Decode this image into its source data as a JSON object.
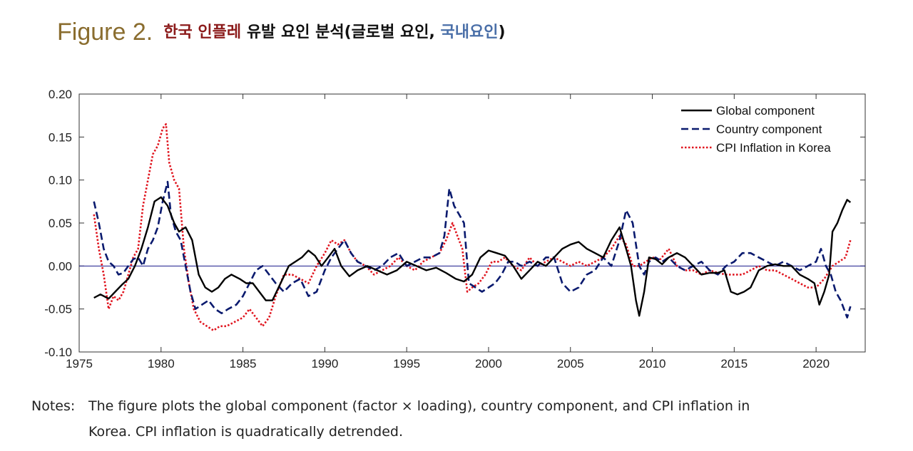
{
  "figure": {
    "label": "Figure  2.",
    "title_part1": "한국 인플레",
    "title_part2": " 유발 요인 분석(글로벌 요인, ",
    "title_part3": "국내요인",
    "title_part4": ")"
  },
  "notes": {
    "label": "Notes:",
    "line1": "The figure plots the global component (factor × loading), country component, and CPI inflation in",
    "line2": "Korea. CPI inflation is quadratically detrended."
  },
  "chart_data": {
    "type": "line",
    "xlim": [
      1975,
      2023
    ],
    "ylim": [
      -0.1,
      0.2
    ],
    "yticks": [
      -0.1,
      -0.05,
      0.0,
      0.05,
      0.1,
      0.15,
      0.2
    ],
    "ytick_labels": [
      "-0.10",
      "-0.05",
      "0.00",
      "0.05",
      "0.10",
      "0.15",
      "0.20"
    ],
    "xticks": [
      1975,
      1980,
      1985,
      1990,
      1995,
      2000,
      2005,
      2010,
      2015,
      2020
    ],
    "xtick_labels": [
      "1975",
      "1980",
      "1985",
      "1990",
      "1995",
      "2000",
      "2005",
      "2010",
      "2015",
      "2020"
    ],
    "zero_line": true,
    "legend_position": "top-right",
    "series": [
      {
        "name": "Global component",
        "color": "#000000",
        "style": "solid",
        "x": [
          1975.9,
          1976.3,
          1976.8,
          1977.2,
          1977.6,
          1978.0,
          1978.4,
          1978.8,
          1979.2,
          1979.6,
          1980.0,
          1980.4,
          1980.8,
          1981.1,
          1981.5,
          1981.9,
          1982.3,
          1982.7,
          1983.1,
          1983.5,
          1983.9,
          1984.3,
          1984.8,
          1985.2,
          1985.6,
          1986.0,
          1986.4,
          1986.8,
          1987.3,
          1987.8,
          1988.2,
          1988.6,
          1989.0,
          1989.4,
          1989.8,
          1990.2,
          1990.6,
          1991.0,
          1991.5,
          1992.0,
          1992.6,
          1993.2,
          1993.8,
          1994.4,
          1995.0,
          1995.6,
          1996.2,
          1996.8,
          1997.4,
          1998.0,
          1998.5,
          1999.0,
          1999.5,
          2000.0,
          2000.5,
          2001.0,
          2001.5,
          2002.0,
          2002.5,
          2003.0,
          2003.5,
          2004.0,
          2004.5,
          2005.0,
          2005.5,
          2006.0,
          2006.5,
          2007.0,
          2007.5,
          2008.0,
          2008.4,
          2008.7,
          2009.0,
          2009.2,
          2009.5,
          2009.8,
          2010.2,
          2010.6,
          2011.0,
          2011.5,
          2012.0,
          2012.5,
          2013.0,
          2013.5,
          2014.0,
          2014.4,
          2014.8,
          2015.2,
          2015.6,
          2016.0,
          2016.5,
          2017.0,
          2017.5,
          2018.0,
          2018.5,
          2019.0,
          2019.5,
          2019.9,
          2020.2,
          2020.5,
          2020.8,
          2021.0,
          2021.3,
          2021.6,
          2021.9,
          2022.1
        ],
        "y": [
          -0.037,
          -0.033,
          -0.038,
          -0.03,
          -0.022,
          -0.015,
          0.0,
          0.02,
          0.045,
          0.075,
          0.08,
          0.07,
          0.05,
          0.04,
          0.045,
          0.03,
          -0.01,
          -0.025,
          -0.03,
          -0.025,
          -0.015,
          -0.01,
          -0.015,
          -0.02,
          -0.02,
          -0.03,
          -0.04,
          -0.04,
          -0.02,
          0.0,
          0.005,
          0.01,
          0.018,
          0.012,
          0.0,
          0.01,
          0.02,
          0.0,
          -0.012,
          -0.005,
          0.0,
          -0.005,
          -0.01,
          -0.005,
          0.005,
          0.0,
          -0.005,
          -0.002,
          -0.008,
          -0.015,
          -0.018,
          -0.01,
          0.01,
          0.018,
          0.015,
          0.012,
          0.0,
          -0.015,
          -0.005,
          0.005,
          0.0,
          0.01,
          0.02,
          0.025,
          0.028,
          0.02,
          0.015,
          0.01,
          0.03,
          0.045,
          0.02,
          0.0,
          -0.04,
          -0.058,
          -0.03,
          0.01,
          0.008,
          0.002,
          0.01,
          0.015,
          0.01,
          0.0,
          -0.01,
          -0.008,
          -0.008,
          -0.005,
          -0.03,
          -0.033,
          -0.03,
          -0.025,
          -0.005,
          0.0,
          0.002,
          0.0,
          0.0,
          -0.01,
          -0.015,
          -0.02,
          -0.045,
          -0.03,
          -0.01,
          0.04,
          0.05,
          0.065,
          0.077,
          0.074
        ]
      },
      {
        "name": "Country component",
        "color": "#0a1a6e",
        "style": "dashed",
        "x": [
          1975.9,
          1976.2,
          1976.5,
          1976.8,
          1977.1,
          1977.4,
          1977.7,
          1978.0,
          1978.3,
          1978.6,
          1978.9,
          1979.2,
          1979.5,
          1979.8,
          1980.1,
          1980.4,
          1980.6,
          1980.9,
          1981.2,
          1981.5,
          1981.8,
          1982.1,
          1982.5,
          1982.9,
          1983.3,
          1983.7,
          1984.1,
          1984.6,
          1985.0,
          1985.4,
          1985.8,
          1986.2,
          1986.6,
          1987.0,
          1987.5,
          1988.0,
          1988.5,
          1989.0,
          1989.5,
          1990.0,
          1990.4,
          1990.8,
          1991.2,
          1991.6,
          1992.0,
          1992.5,
          1993.0,
          1993.5,
          1994.0,
          1994.5,
          1995.0,
          1995.5,
          1996.0,
          1996.5,
          1997.0,
          1997.3,
          1997.6,
          1997.9,
          1998.2,
          1998.5,
          1998.8,
          1999.2,
          1999.6,
          2000.0,
          2000.4,
          2000.8,
          2001.2,
          2001.6,
          2002.0,
          2002.5,
          2003.0,
          2003.5,
          2004.0,
          2004.5,
          2005.0,
          2005.5,
          2006.0,
          2006.5,
          2007.0,
          2007.5,
          2008.0,
          2008.4,
          2008.8,
          2009.2,
          2009.5,
          2009.8,
          2010.2,
          2010.6,
          2011.0,
          2011.5,
          2012.0,
          2012.5,
          2013.0,
          2013.5,
          2014.0,
          2014.5,
          2015.0,
          2015.5,
          2016.0,
          2016.5,
          2017.0,
          2017.5,
          2018.0,
          2018.5,
          2019.0,
          2019.5,
          2020.0,
          2020.3,
          2020.6,
          2020.9,
          2021.2,
          2021.5,
          2021.7,
          2021.9,
          2022.1
        ],
        "y": [
          0.075,
          0.05,
          0.02,
          0.005,
          0.0,
          -0.01,
          -0.008,
          0.0,
          0.008,
          0.01,
          0.0,
          0.02,
          0.03,
          0.045,
          0.075,
          0.098,
          0.06,
          0.04,
          0.03,
          0.0,
          -0.03,
          -0.05,
          -0.045,
          -0.04,
          -0.05,
          -0.055,
          -0.05,
          -0.045,
          -0.035,
          -0.02,
          -0.005,
          0.0,
          -0.01,
          -0.02,
          -0.03,
          -0.02,
          -0.015,
          -0.035,
          -0.03,
          -0.005,
          0.01,
          0.02,
          0.03,
          0.015,
          0.005,
          0.0,
          -0.005,
          0.0,
          0.01,
          0.015,
          0.0,
          0.005,
          0.01,
          0.01,
          0.015,
          0.035,
          0.09,
          0.07,
          0.06,
          0.05,
          -0.02,
          -0.025,
          -0.03,
          -0.025,
          -0.02,
          -0.01,
          0.005,
          0.005,
          0.0,
          0.005,
          0.0,
          0.01,
          0.01,
          -0.02,
          -0.03,
          -0.025,
          -0.01,
          -0.005,
          0.01,
          0.0,
          0.03,
          0.065,
          0.05,
          0.0,
          -0.01,
          0.005,
          0.01,
          0.005,
          0.01,
          0.0,
          -0.005,
          0.0,
          0.005,
          -0.005,
          -0.01,
          0.0,
          0.005,
          0.015,
          0.015,
          0.01,
          0.005,
          0.0,
          0.005,
          0.0,
          -0.005,
          0.0,
          0.005,
          0.02,
          0.0,
          -0.01,
          -0.03,
          -0.04,
          -0.05,
          -0.06,
          -0.047
        ]
      },
      {
        "name": "CPI Inflation in Korea",
        "color": "#e0141e",
        "style": "dotted",
        "x": [
          1975.9,
          1976.2,
          1976.5,
          1976.8,
          1977.1,
          1977.4,
          1977.7,
          1978.0,
          1978.3,
          1978.6,
          1978.9,
          1979.2,
          1979.5,
          1979.8,
          1980.1,
          1980.3,
          1980.5,
          1980.8,
          1981.1,
          1981.4,
          1981.7,
          1982.0,
          1982.4,
          1982.8,
          1983.2,
          1983.6,
          1984.0,
          1984.5,
          1985.0,
          1985.4,
          1985.8,
          1986.2,
          1986.6,
          1987.0,
          1987.5,
          1988.0,
          1988.5,
          1989.0,
          1989.5,
          1990.0,
          1990.4,
          1990.8,
          1991.2,
          1991.6,
          1992.0,
          1992.5,
          1993.0,
          1993.5,
          1994.0,
          1994.5,
          1995.0,
          1995.5,
          1996.0,
          1996.5,
          1997.0,
          1997.4,
          1997.8,
          1998.1,
          1998.4,
          1998.7,
          1999.0,
          1999.4,
          1999.8,
          2000.2,
          2000.6,
          2001.0,
          2001.5,
          2002.0,
          2002.5,
          2003.0,
          2003.5,
          2004.0,
          2004.5,
          2005.0,
          2005.5,
          2006.0,
          2006.5,
          2007.0,
          2007.5,
          2008.0,
          2008.4,
          2008.8,
          2009.2,
          2009.6,
          2010.0,
          2010.5,
          2011.0,
          2011.5,
          2012.0,
          2012.5,
          2013.0,
          2013.5,
          2014.0,
          2014.5,
          2015.0,
          2015.5,
          2016.0,
          2016.5,
          2017.0,
          2017.5,
          2018.0,
          2018.5,
          2019.0,
          2019.5,
          2020.0,
          2020.5,
          2021.0,
          2021.4,
          2021.8,
          2022.1
        ],
        "y": [
          0.06,
          0.02,
          -0.01,
          -0.05,
          -0.035,
          -0.04,
          -0.03,
          -0.01,
          0.01,
          0.02,
          0.07,
          0.1,
          0.13,
          0.14,
          0.16,
          0.165,
          0.12,
          0.1,
          0.09,
          0.02,
          -0.02,
          -0.05,
          -0.065,
          -0.07,
          -0.075,
          -0.07,
          -0.07,
          -0.065,
          -0.06,
          -0.05,
          -0.06,
          -0.07,
          -0.06,
          -0.035,
          -0.01,
          -0.01,
          -0.015,
          -0.02,
          0.0,
          0.015,
          0.03,
          0.025,
          0.03,
          0.015,
          0.005,
          0.0,
          -0.01,
          -0.005,
          0.0,
          0.01,
          0.0,
          -0.005,
          0.005,
          0.01,
          0.015,
          0.03,
          0.05,
          0.035,
          0.02,
          -0.03,
          -0.025,
          -0.02,
          -0.01,
          0.005,
          0.005,
          0.01,
          0.0,
          -0.005,
          0.01,
          0.0,
          0.005,
          0.01,
          0.005,
          0.0,
          0.005,
          0.0,
          0.005,
          0.01,
          0.02,
          0.035,
          0.025,
          0.0,
          0.0,
          0.005,
          0.01,
          0.008,
          0.02,
          0.0,
          -0.005,
          -0.005,
          -0.01,
          -0.005,
          -0.008,
          -0.01,
          -0.01,
          -0.01,
          -0.005,
          0.0,
          -0.005,
          -0.005,
          -0.01,
          -0.015,
          -0.02,
          -0.025,
          -0.025,
          -0.015,
          0.0,
          0.005,
          0.01,
          0.03
        ]
      }
    ]
  }
}
